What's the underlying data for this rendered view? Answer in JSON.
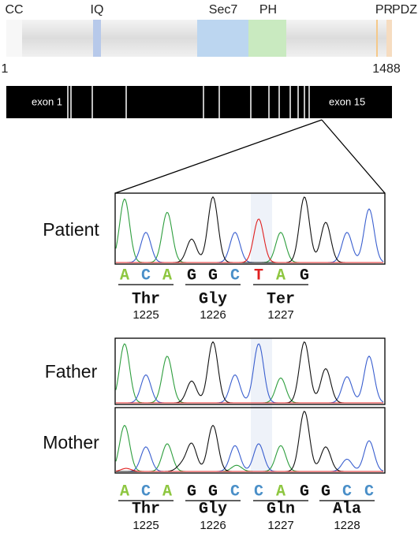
{
  "protein": {
    "domains": [
      "CC",
      "IQ",
      "Sec7",
      "PH",
      "PR",
      "PDZ"
    ],
    "start": 1,
    "end": 1488
  },
  "gene": {
    "exons": [
      "exon 1",
      "exon 15"
    ]
  },
  "patient": {
    "label": "Patient",
    "bases": [
      "A",
      "C",
      "A",
      "G",
      "G",
      "C",
      "T",
      "A",
      "G"
    ],
    "codons": [
      {
        "aa": "Thr",
        "pos": 1225
      },
      {
        "aa": "Gly",
        "pos": 1226
      },
      {
        "aa": "Ter",
        "pos": 1227
      }
    ]
  },
  "father": {
    "label": "Father"
  },
  "mother": {
    "label": "Mother",
    "bases": [
      "A",
      "C",
      "A",
      "G",
      "G",
      "C",
      "C",
      "A",
      "G",
      "G",
      "C",
      "C"
    ],
    "codons": [
      {
        "aa": "Thr",
        "pos": 1225
      },
      {
        "aa": "Gly",
        "pos": 1226
      },
      {
        "aa": "Gln",
        "pos": 1227
      },
      {
        "aa": "Ala",
        "pos": 1228
      }
    ]
  }
}
